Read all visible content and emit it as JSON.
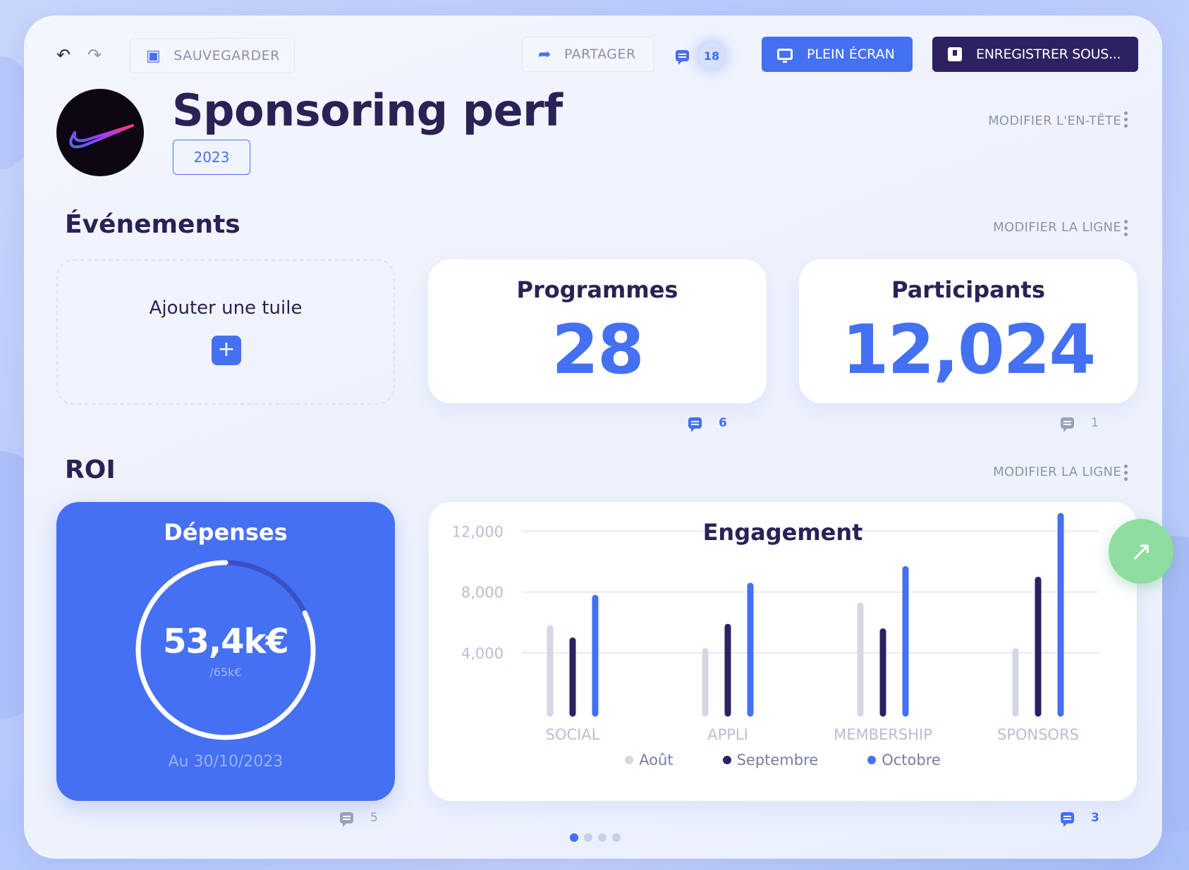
{
  "toolbar": {
    "undo_icon": "undo-icon",
    "redo_icon": "redo-icon",
    "save_label": "SAUVEGARDER",
    "share_label": "PARTAGER",
    "comments_count": "18",
    "fullscreen_label": "PLEIN ÉCRAN",
    "save_as_label": "ENREGISTRER SOUS..."
  },
  "header": {
    "title": "Sponsoring perf",
    "year": "2023",
    "edit_label": "MODIFIER L'EN-TÊTE"
  },
  "events": {
    "title": "Événements",
    "edit_label": "MODIFIER LA LIGNE",
    "add_tile_label": "Ajouter une tuile",
    "tiles": [
      {
        "title": "Programmes",
        "value": "28",
        "comments": "6"
      },
      {
        "title": "Participants",
        "value": "12,024",
        "comments": "1"
      }
    ]
  },
  "roi": {
    "title": "ROI",
    "edit_label": "MODIFIER LA LIGNE",
    "spending": {
      "title": "Dépenses",
      "value": "53,4k€",
      "target": "/65k€",
      "progress": 0.82,
      "date": "Au 30/10/2023",
      "comments": "5"
    },
    "engagement_comments": "3"
  },
  "chart_data": {
    "type": "bar",
    "title": "Engagement",
    "categories": [
      "SOCIAL",
      "APPLI",
      "MEMBERSHIP",
      "SPONSORS"
    ],
    "yticks": [
      "4,000",
      "8,000",
      "12,000"
    ],
    "ytick_values": [
      4000,
      8000,
      12000
    ],
    "ylim": [
      0,
      13000
    ],
    "grid": true,
    "legend_position": "bottom",
    "series": [
      {
        "name": "Août",
        "color": "#d4d7e3",
        "values": [
          5600,
          4100,
          7100,
          4100
        ]
      },
      {
        "name": "Septembre",
        "color": "#2d2162",
        "values": [
          4800,
          5700,
          5400,
          8800
        ]
      },
      {
        "name": "Octobre",
        "color": "#4471f2",
        "values": [
          7600,
          8400,
          9500,
          13000
        ]
      }
    ]
  },
  "pager": {
    "count": 4,
    "active": 0
  }
}
